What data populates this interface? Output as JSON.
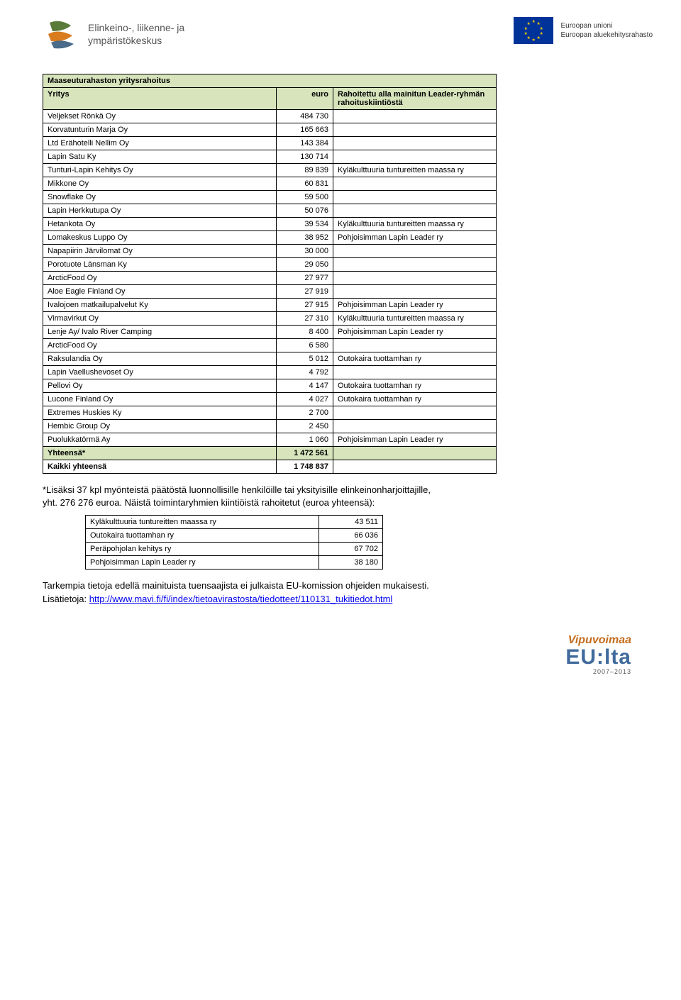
{
  "header": {
    "left_logo_text": "Elinkeino-, liikenne- ja\nympäristökeskus",
    "eu_line1": "Euroopan unioni",
    "eu_line2": "Euroopan aluekehitysrahasto"
  },
  "table": {
    "title": "Maaseuturahaston yritysrahoitus",
    "col_company": "Yritys",
    "col_amount": "euro",
    "col_note": "Rahoitettu alla mainitun Leader-ryhmän rahoituskiintiöstä",
    "rows": [
      {
        "company": "Veljekset Rönkä Oy",
        "amount": "484 730",
        "note": ""
      },
      {
        "company": "Korvatunturin Marja Oy",
        "amount": "165 663",
        "note": ""
      },
      {
        "company": "Ltd Erähotelli Nellim Oy",
        "amount": "143 384",
        "note": ""
      },
      {
        "company": "Lapin Satu Ky",
        "amount": "130 714",
        "note": ""
      },
      {
        "company": "Tunturi-Lapin Kehitys Oy",
        "amount": "89 839",
        "note": "Kyläkulttuuria tuntureitten maassa ry"
      },
      {
        "company": "Mikkone Oy",
        "amount": "60 831",
        "note": ""
      },
      {
        "company": "Snowflake Oy",
        "amount": "59 500",
        "note": ""
      },
      {
        "company": "Lapin Herkkutupa Oy",
        "amount": "50 076",
        "note": ""
      },
      {
        "company": "Hetankota Oy",
        "amount": "39 534",
        "note": "Kyläkulttuuria tuntureitten maassa ry"
      },
      {
        "company": "Lomakeskus Luppo Oy",
        "amount": "38 952",
        "note": "Pohjoisimman Lapin Leader ry"
      },
      {
        "company": "Napapiirin Järvilomat Oy",
        "amount": "30 000",
        "note": ""
      },
      {
        "company": "Porotuote Länsman Ky",
        "amount": "29 050",
        "note": ""
      },
      {
        "company": "ArcticFood Oy",
        "amount": "27 977",
        "note": ""
      },
      {
        "company": "Aloe Eagle Finland Oy",
        "amount": "27 919",
        "note": ""
      },
      {
        "company": "Ivalojoen matkailupalvelut Ky",
        "amount": "27 915",
        "note": "Pohjoisimman Lapin Leader ry"
      },
      {
        "company": "Virmavirkut Oy",
        "amount": "27 310",
        "note": "Kyläkulttuuria tuntureitten maassa ry"
      },
      {
        "company": "Lenje Ay/ Ivalo River Camping",
        "amount": "8 400",
        "note": "Pohjoisimman Lapin Leader ry"
      },
      {
        "company": "ArcticFood Oy",
        "amount": "6 580",
        "note": ""
      },
      {
        "company": "Raksulandia Oy",
        "amount": "5 012",
        "note": "Outokaira tuottamhan ry"
      },
      {
        "company": "Lapin Vaellushevoset Oy",
        "amount": "4 792",
        "note": ""
      },
      {
        "company": "Pellovi Oy",
        "amount": "4 147",
        "note": "Outokaira tuottamhan ry"
      },
      {
        "company": "Lucone Finland Oy",
        "amount": "4 027",
        "note": "Outokaira tuottamhan ry"
      },
      {
        "company": "Extremes Huskies Ky",
        "amount": "2 700",
        "note": ""
      },
      {
        "company": "Hembic Group Oy",
        "amount": "2 450",
        "note": ""
      },
      {
        "company": "Puolukkatörmä Ay",
        "amount": "1 060",
        "note": "Pohjoisimman Lapin Leader ry"
      }
    ],
    "total_label": "Yhteensä*",
    "total_value": "1 472 561",
    "grand_label": "Kaikki yhteensä",
    "grand_value": "1 748 837"
  },
  "footnote": {
    "line1": "*Lisäksi 37 kpl myönteistä päätöstä luonnollisille henkilöille tai yksityisille elinkeinonharjoittajille,",
    "line2": " yht. 276 276 euroa. Näistä toimintaryhmien kiintiöistä rahoitetut (euroa yhteensä):"
  },
  "mini": {
    "rows": [
      {
        "label": "Kyläkulttuuria tuntureitten maassa ry",
        "value": "43 511"
      },
      {
        "label": "Outokaira tuottamhan ry",
        "value": "66 036"
      },
      {
        "label": "Peräpohjolan kehitys ry",
        "value": "67 702"
      },
      {
        "label": "Pohjoisimman Lapin Leader ry",
        "value": "38 180"
      }
    ]
  },
  "closing": {
    "text1": "Tarkempia tietoja edellä mainituista tuensaajista ei julkaista EU-komission ohjeiden mukaisesti.",
    "text2_prefix": "Lisätietoja: ",
    "link": "http://www.mavi.fi/fi/index/tietoavirastosta/tiedotteet/110131_tukitiedot.html"
  },
  "footer": {
    "vipu_top": "Vipuvoimaa",
    "vipu_mid": "EU:lta",
    "vipu_sub": "2007–2013"
  },
  "colors": {
    "header_bg": "#d7e4bc",
    "border": "#000000",
    "link": "#0000ee",
    "vipu_orange": "#c46c1d",
    "vipu_blue": "#416b9c",
    "eu_blue": "#003399",
    "eu_gold": "#ffcc00"
  }
}
